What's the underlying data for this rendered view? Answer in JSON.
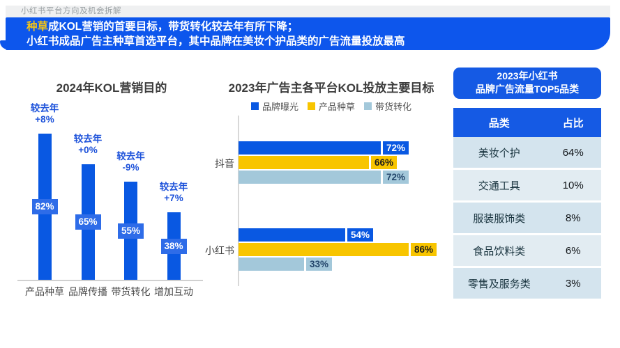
{
  "page": {
    "kicker": "小红书平台方向及机会拆解",
    "banner": {
      "highlight": "种草",
      "line1_rest": "成KOL营销的首要目标，带货转化较去年有所下降；",
      "line2": "小红书成品广告主种草首选平台，其中品牌在美妆个护品类的广告流量投放最高"
    }
  },
  "colors": {
    "banner_blue": "#0d56ec",
    "highlight_yellow": "#f6c514",
    "bar_blue": "#0958e2",
    "badge_blue": "#2e6ce8",
    "change_text_blue": "#1d52da",
    "series_yellow": "#f8c500",
    "series_lightblue": "#a3c8da",
    "panel_blue": "#155ae4",
    "row_bg_dark": "#d4e4ee",
    "row_bg_light": "#e2ecf2"
  },
  "chart_data": [
    {
      "type": "bar",
      "title": "2024年KOL营销目的",
      "categories": [
        "产品种草",
        "品牌传播",
        "带货转化",
        "增加互动"
      ],
      "values": [
        82,
        65,
        55,
        38
      ],
      "value_labels": [
        "82%",
        "65%",
        "55%",
        "38%"
      ],
      "change_labels": [
        [
          "较去年",
          "+8%"
        ],
        [
          "较去年",
          "+0%"
        ],
        [
          "较去年",
          "-9%"
        ],
        [
          "较去年",
          "+7%"
        ]
      ],
      "ylim": [
        0,
        100
      ],
      "grid": false,
      "bar_color": "#0958e2"
    },
    {
      "type": "bar-horizontal",
      "title": "2023年广告主各平台KOL投放主要目标",
      "categories": [
        "抖音",
        "小红书"
      ],
      "legend_position": "top",
      "xlim": [
        0,
        100
      ],
      "series": [
        {
          "name": "品牌曝光",
          "color": "#0958e2",
          "values": [
            72,
            54
          ],
          "value_labels": [
            "72%",
            "54%"
          ]
        },
        {
          "name": "产品种草",
          "color": "#f8c500",
          "values": [
            66,
            86
          ],
          "value_labels": [
            "66%",
            "86%"
          ]
        },
        {
          "name": "带货转化",
          "color": "#a3c8da",
          "values": [
            72,
            33
          ],
          "value_labels": [
            "72%",
            "33%"
          ]
        }
      ]
    },
    {
      "type": "table",
      "title_line1": "2023年小红书",
      "title_line2": "品牌广告流量TOP5品类",
      "columns": [
        "品类",
        "占比"
      ],
      "rows": [
        [
          "美妆个护",
          "64%"
        ],
        [
          "交通工具",
          "10%"
        ],
        [
          "服装服饰类",
          "8%"
        ],
        [
          "食品饮料类",
          "6%"
        ],
        [
          "零售及服务类",
          "3%"
        ]
      ]
    }
  ]
}
